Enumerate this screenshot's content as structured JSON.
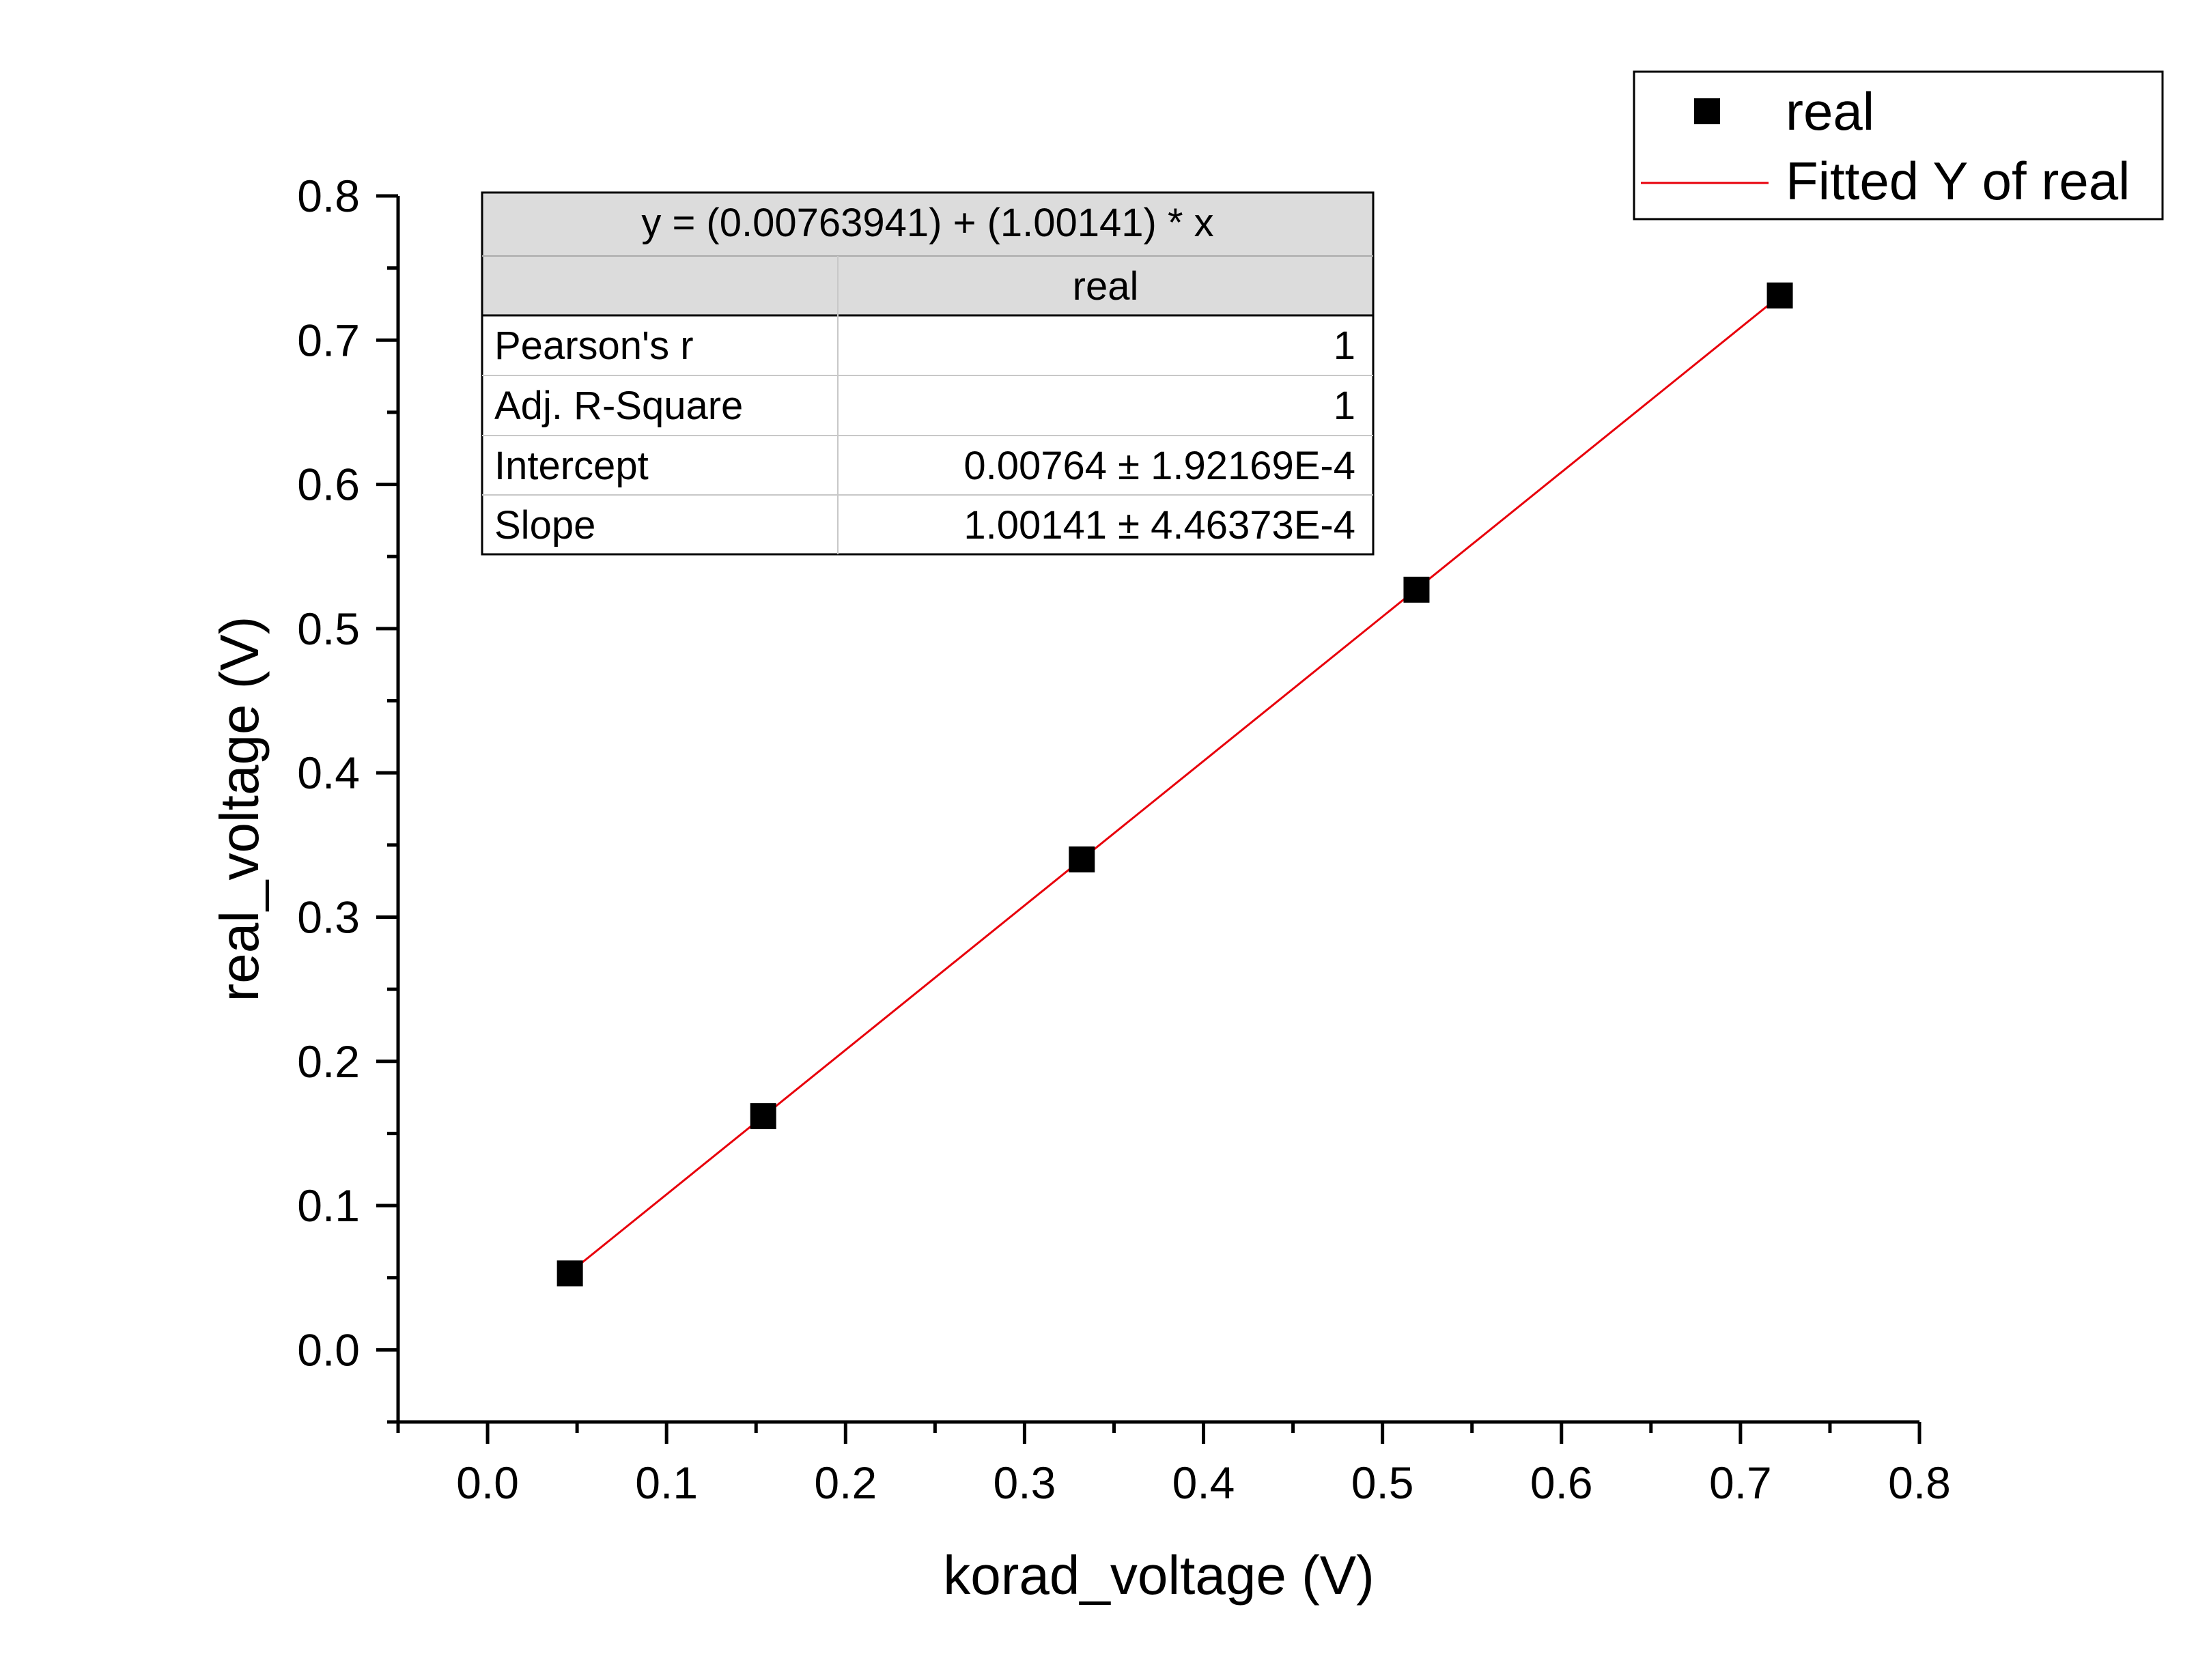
{
  "chart_data": {
    "type": "scatter",
    "xlabel": "korad_voltage (V)",
    "ylabel": "real_voltage (V)",
    "xlim": [
      -0.05,
      0.8
    ],
    "ylim": [
      -0.05,
      0.8
    ],
    "xticks": [
      0.0,
      0.1,
      0.2,
      0.3,
      0.4,
      0.5,
      0.6,
      0.7,
      0.8
    ],
    "yticks": [
      0.0,
      0.1,
      0.2,
      0.3,
      0.4,
      0.5,
      0.6,
      0.7,
      0.8
    ],
    "tick_labels_x": [
      "0.0",
      "0.1",
      "0.2",
      "0.3",
      "0.4",
      "0.5",
      "0.6",
      "0.7",
      "0.8"
    ],
    "tick_labels_y": [
      "0.0",
      "0.1",
      "0.2",
      "0.3",
      "0.4",
      "0.5",
      "0.6",
      "0.7",
      "0.8"
    ],
    "series": [
      {
        "name": "real",
        "kind": "scatter",
        "marker": "square",
        "color": "#000000",
        "x": [
          0.046,
          0.154,
          0.332,
          0.519,
          0.722
        ],
        "y": [
          0.053,
          0.162,
          0.34,
          0.527,
          0.731
        ]
      },
      {
        "name": "Fitted Y of real",
        "kind": "line",
        "color": "#e8000b",
        "intercept": 0.00763941,
        "slope": 1.00141,
        "x_range": [
          0.046,
          0.722
        ]
      }
    ],
    "legend": {
      "placement": "top-right",
      "entries": [
        "real",
        "Fitted Y of real"
      ]
    },
    "grid": false,
    "stats_table": {
      "equation": "y = (0.00763941) + (1.00141) * x",
      "column_header": "real",
      "rows": [
        {
          "label": "Pearson's r",
          "value": "1"
        },
        {
          "label": "Adj. R-Square",
          "value": "1"
        },
        {
          "label": "Intercept",
          "value": "0.00764 ± 1.92169E-4"
        },
        {
          "label": "Slope",
          "value": "1.00141 ± 4.46373E-4"
        }
      ]
    }
  }
}
